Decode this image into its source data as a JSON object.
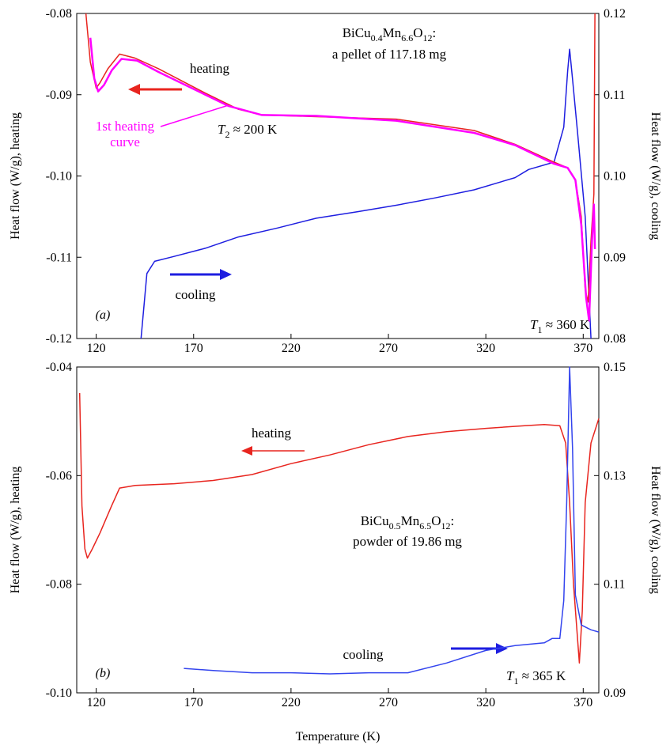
{
  "chart_data": [
    {
      "type": "line",
      "panel_label": "(a)",
      "title": [
        "BiCu",
        "0.4",
        "Mn",
        "6.6",
        "O",
        "12",
        ":"
      ],
      "subtitle": "a pellet of 117.18 mg",
      "ylabel": "Heat flow (W/g), heating",
      "y2label": "Heat flow (W/g), cooling",
      "xlim": [
        110,
        378
      ],
      "xticks": [
        120,
        170,
        220,
        270,
        320,
        370
      ],
      "ylim": [
        -0.12,
        -0.08
      ],
      "yticks": [
        -0.08,
        -0.09,
        {
          "value": -0.1,
          "label": "-0.10"
        },
        -0.11,
        -0.12
      ],
      "y2lim": [
        0.08,
        0.12
      ],
      "y2ticks": [
        0.12,
        0.11,
        {
          "value": 0.1,
          "label": "0.10"
        },
        0.09,
        0.08
      ],
      "annotations": {
        "t2": [
          "T",
          "2",
          " ≈ 200 K"
        ],
        "t1": [
          "T",
          "1",
          " ≈ 360 K"
        ]
      },
      "series": [
        {
          "name": "cooling",
          "color": "#1e1ee0",
          "axis": "y2",
          "x": [
            143,
            146,
            150,
            160,
            176,
            193,
            213,
            233,
            254,
            274,
            294,
            314,
            335,
            342,
            355,
            360,
            362,
            363,
            364.5,
            367,
            371,
            374
          ],
          "values": [
            0.08,
            0.088,
            0.0895,
            0.0901,
            0.0911,
            0.0925,
            0.0936,
            0.0948,
            0.0956,
            0.0964,
            0.0973,
            0.0983,
            0.0998,
            0.1008,
            0.1017,
            0.106,
            0.1129,
            0.1156,
            0.1119,
            0.1056,
            0.095,
            0.08
          ]
        },
        {
          "name": "heating",
          "color": "#e8251f",
          "axis": "y",
          "x": [
            114.7,
            117,
            120,
            122,
            126,
            132,
            140,
            152,
            176,
            193,
            205,
            233,
            274,
            314,
            335,
            355,
            362,
            366,
            369,
            371,
            372.5,
            374,
            375.5,
            376
          ],
          "values": [
            -0.08,
            -0.086,
            -0.0892,
            -0.0885,
            -0.0868,
            -0.085,
            -0.0855,
            -0.0868,
            -0.0898,
            -0.0918,
            -0.0925,
            -0.0927,
            -0.093,
            -0.0944,
            -0.0961,
            -0.0983,
            -0.099,
            -0.1005,
            -0.105,
            -0.114,
            -0.1155,
            -0.108,
            -0.1022,
            -0.08
          ]
        },
        {
          "name": "1st heating curve",
          "color": "#ff00ff",
          "axis": "y",
          "x": [
            117,
            119,
            121,
            124,
            128,
            133,
            141,
            152,
            176,
            188,
            205,
            233,
            274,
            314,
            335,
            355,
            362,
            366,
            369,
            371.5,
            373,
            374.5,
            375.5,
            376
          ],
          "values": [
            -0.083,
            -0.088,
            -0.0896,
            -0.0888,
            -0.087,
            -0.0856,
            -0.0858,
            -0.0872,
            -0.09,
            -0.0914,
            -0.0925,
            -0.0926,
            -0.0932,
            -0.0947,
            -0.0962,
            -0.0985,
            -0.099,
            -0.1005,
            -0.106,
            -0.115,
            -0.1178,
            -0.108,
            -0.1035,
            -0.109
          ]
        }
      ]
    },
    {
      "type": "line",
      "panel_label": "(b)",
      "title": [
        "BiCu",
        "0.5",
        "Mn",
        "6.5",
        "O",
        "12",
        ":"
      ],
      "subtitle": "powder of 19.86 mg",
      "xlabel": "Temperature (K)",
      "ylabel": "Heat flow (W/g), heating",
      "y2label": "Heat flow (W/g), cooling",
      "xlim": [
        110,
        378
      ],
      "xticks": [
        120,
        170,
        220,
        270,
        320,
        370
      ],
      "ylim": [
        -0.1,
        -0.04
      ],
      "yticks": [
        -0.04,
        -0.06,
        -0.08,
        {
          "value": -0.1,
          "label": "-0.10"
        }
      ],
      "y2lim": [
        0.09,
        0.15
      ],
      "y2ticks": [
        0.15,
        0.13,
        0.11,
        0.09
      ],
      "annotations": {
        "t1": [
          "T",
          "1",
          " ≈ 365 K"
        ]
      },
      "series": [
        {
          "name": "heating",
          "color": "#e8251f",
          "axis": "y",
          "x": [
            111.5,
            112.7,
            114.2,
            115.5,
            118,
            122,
            125,
            128,
            132,
            140,
            160,
            180,
            200,
            220,
            240,
            260,
            280,
            300,
            320,
            340,
            350,
            358,
            361,
            363,
            365,
            368,
            369.5,
            371,
            374,
            378
          ],
          "values": [
            -0.0448,
            -0.0656,
            -0.0735,
            -0.0752,
            -0.0735,
            -0.0705,
            -0.068,
            -0.0655,
            -0.0623,
            -0.0618,
            -0.0615,
            -0.0609,
            -0.0598,
            -0.0578,
            -0.0562,
            -0.0543,
            -0.0528,
            -0.0519,
            -0.0513,
            -0.0508,
            -0.0506,
            -0.0508,
            -0.054,
            -0.065,
            -0.08,
            -0.0945,
            -0.085,
            -0.065,
            -0.054,
            -0.0495
          ]
        },
        {
          "name": "cooling",
          "color": "#3344ee",
          "axis": "y2",
          "x": [
            165,
            180,
            200,
            220,
            240,
            260,
            280,
            300,
            320,
            335,
            350,
            354,
            358,
            360,
            361.5,
            363,
            364.5,
            366,
            369,
            374,
            378
          ],
          "values": [
            0.0945,
            0.0941,
            0.0937,
            0.0937,
            0.0935,
            0.0937,
            0.0937,
            0.0955,
            0.0978,
            0.0987,
            0.0992,
            0.1,
            0.1,
            0.107,
            0.125,
            0.15,
            0.135,
            0.108,
            0.1025,
            0.1016,
            0.1012
          ]
        }
      ]
    }
  ]
}
